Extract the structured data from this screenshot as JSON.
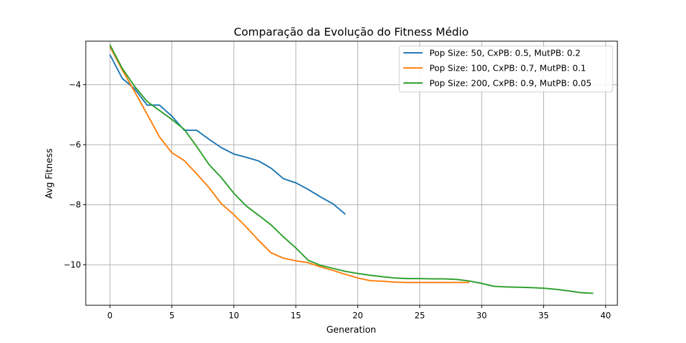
{
  "chart_data": {
    "type": "line",
    "title": "Comparação da Evolução do Fitness Médio",
    "xlabel": "Generation",
    "ylabel": "Avg Fitness",
    "xlim": [
      -1.95,
      40.95
    ],
    "ylim": [
      -11.35,
      -2.55
    ],
    "xticks": [
      0,
      5,
      10,
      15,
      20,
      25,
      30,
      35,
      40
    ],
    "yticks": [
      -10,
      -8,
      -6,
      -4
    ],
    "ytick_labels": [
      "−10",
      "−8",
      "−6",
      "−4"
    ],
    "grid": true,
    "legend_position": "top-right",
    "series": [
      {
        "name": "Pop Size: 50, CxPB: 0.5, MutPB: 0.2",
        "color": "#1f77b4",
        "x": [
          0,
          1,
          2,
          3,
          4,
          5,
          6,
          7,
          8,
          9,
          10,
          11,
          12,
          13,
          14,
          15,
          16,
          17,
          18,
          19
        ],
        "values": [
          -3.0,
          -3.79,
          -4.14,
          -4.68,
          -4.68,
          -5.05,
          -5.52,
          -5.52,
          -5.82,
          -6.1,
          -6.31,
          -6.42,
          -6.54,
          -6.78,
          -7.13,
          -7.27,
          -7.49,
          -7.74,
          -7.97,
          -8.32
        ]
      },
      {
        "name": "Pop Size: 100, CxPB: 0.7, MutPB: 0.1",
        "color": "#ff7f0e",
        "x": [
          0,
          1,
          2,
          3,
          4,
          5,
          6,
          7,
          8,
          9,
          10,
          11,
          12,
          13,
          14,
          15,
          16,
          17,
          18,
          19,
          20,
          21,
          22,
          23,
          24,
          25,
          26,
          27,
          28,
          29
        ],
        "values": [
          -2.73,
          -3.51,
          -4.24,
          -4.98,
          -5.74,
          -6.27,
          -6.53,
          -6.97,
          -7.43,
          -7.97,
          -8.33,
          -8.74,
          -9.19,
          -9.6,
          -9.78,
          -9.87,
          -9.93,
          -10.07,
          -10.19,
          -10.32,
          -10.44,
          -10.53,
          -10.55,
          -10.58,
          -10.59,
          -10.59,
          -10.59,
          -10.59,
          -10.59,
          -10.59
        ]
      },
      {
        "name": "Pop Size: 200, CxPB: 0.9, MutPB: 0.05",
        "color": "#2ca02c",
        "x": [
          0,
          1,
          2,
          3,
          4,
          5,
          6,
          7,
          8,
          9,
          10,
          11,
          12,
          13,
          14,
          15,
          16,
          17,
          18,
          19,
          20,
          21,
          22,
          23,
          24,
          25,
          26,
          27,
          28,
          29,
          30,
          31,
          32,
          33,
          34,
          35,
          36,
          37,
          38,
          39
        ],
        "values": [
          -2.67,
          -3.46,
          -4.06,
          -4.56,
          -4.86,
          -5.16,
          -5.49,
          -6.06,
          -6.66,
          -7.1,
          -7.62,
          -8.04,
          -8.35,
          -8.67,
          -9.07,
          -9.44,
          -9.85,
          -10.02,
          -10.12,
          -10.22,
          -10.29,
          -10.35,
          -10.4,
          -10.44,
          -10.46,
          -10.46,
          -10.47,
          -10.47,
          -10.49,
          -10.54,
          -10.62,
          -10.72,
          -10.74,
          -10.75,
          -10.76,
          -10.78,
          -10.82,
          -10.87,
          -10.93,
          -10.95
        ]
      }
    ]
  }
}
